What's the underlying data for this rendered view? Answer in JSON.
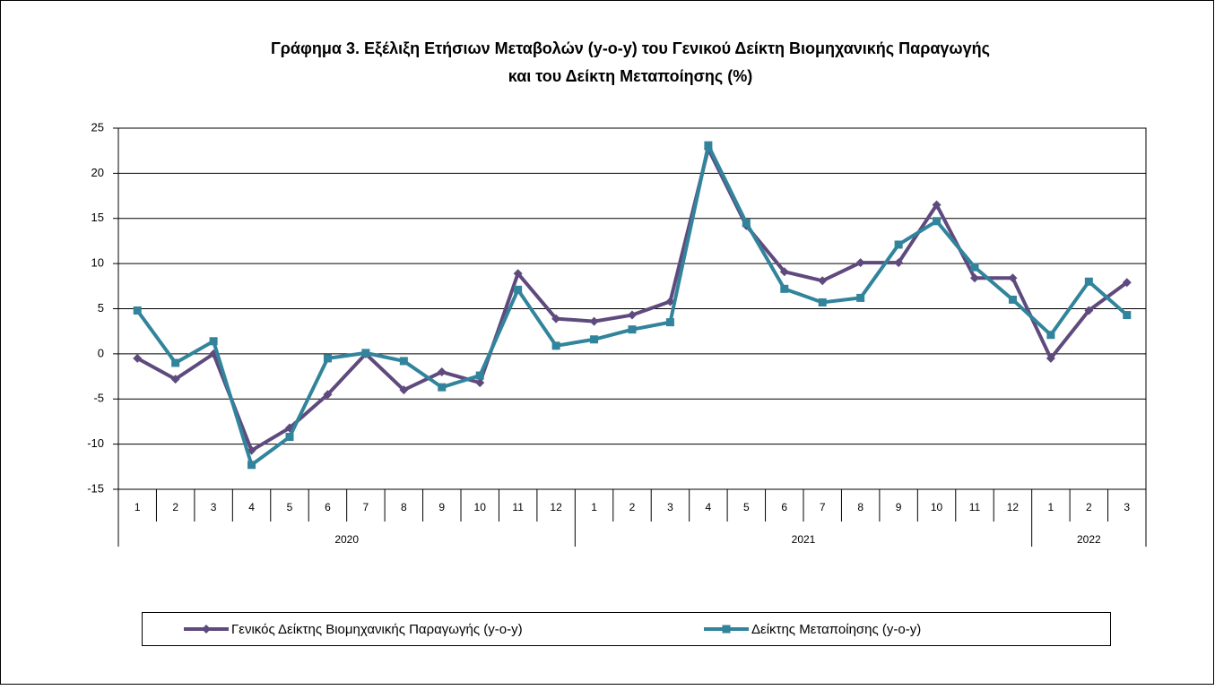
{
  "chart_data": {
    "type": "line",
    "title": "Γράφημα 3. Εξέλιξη Ετήσιων Μεταβολών (y-o-y) του Γενικού Δείκτη Βιομηχανικής Παραγωγής",
    "subtitle": "και του Δείκτη Μεταποίησης (%)",
    "categories": [
      "1",
      "2",
      "3",
      "4",
      "5",
      "6",
      "7",
      "8",
      "9",
      "10",
      "11",
      "12",
      "1",
      "2",
      "3",
      "4",
      "5",
      "6",
      "7",
      "8",
      "9",
      "10",
      "11",
      "12",
      "1",
      "2",
      "3"
    ],
    "category_groups": [
      "2020",
      "2021",
      "2022"
    ],
    "series": [
      {
        "name": "Γενικός Δείκτης Βιομηχανικής Παραγωγής (y-o-y)",
        "color": "#5f4a7d",
        "marker": "diamond",
        "values": [
          -0.5,
          -2.8,
          0,
          -10.7,
          -8.2,
          -4.5,
          0,
          -4.0,
          -2.0,
          -3.2,
          8.9,
          3.9,
          3.6,
          4.3,
          5.8,
          22.7,
          14.2,
          9.1,
          8.1,
          10.1,
          10.1,
          16.5,
          8.4,
          8.4,
          -0.5,
          4.8,
          7.9
        ]
      },
      {
        "name": "Δείκτης Μεταποίησης (y-o-y)",
        "color": "#31849b",
        "marker": "square",
        "values": [
          4.8,
          -1.0,
          1.4,
          -12.3,
          -9.2,
          -0.5,
          0.1,
          -0.8,
          -3.7,
          -2.4,
          7.1,
          0.9,
          1.6,
          2.7,
          3.5,
          23.1,
          14.5,
          7.2,
          5.7,
          6.2,
          12.1,
          14.7,
          9.6,
          6.0,
          2.1,
          8.0,
          4.3
        ]
      }
    ],
    "ylim": [
      -15,
      25
    ],
    "yticks": [
      -15,
      -10,
      -5,
      0,
      5,
      10,
      15,
      20,
      25
    ],
    "grid": true,
    "legend": "bottom"
  }
}
